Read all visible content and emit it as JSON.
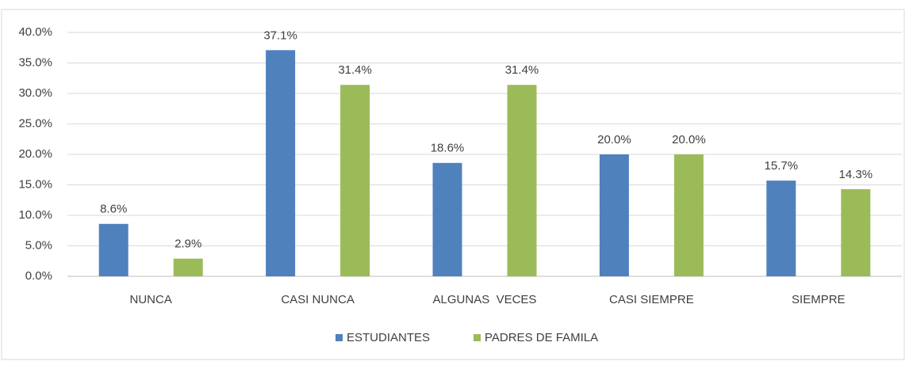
{
  "chart_data": {
    "type": "bar",
    "categories": [
      "NUNCA",
      "CASI NUNCA",
      "ALGUNAS  VECES",
      "CASI SIEMPRE",
      "SIEMPRE"
    ],
    "series": [
      {
        "name": "ESTUDIANTES",
        "color": "#4f81bd",
        "values": [
          8.6,
          37.1,
          18.6,
          20.0,
          15.7
        ],
        "value_labels": [
          "8.6%",
          "37.1%",
          "18.6%",
          "20.0%",
          "15.7%"
        ]
      },
      {
        "name": "PADRES DE FAMILA",
        "color": "#9bbb59",
        "values": [
          2.9,
          31.4,
          31.4,
          20.0,
          14.3
        ],
        "value_labels": [
          "2.9%",
          "31.4%",
          "31.4%",
          "20.0%",
          "14.3%"
        ]
      }
    ],
    "ylim": [
      0,
      40
    ],
    "yticks": [
      {
        "value": 0,
        "label": "0.0%"
      },
      {
        "value": 5,
        "label": "5.0%"
      },
      {
        "value": 10,
        "label": "10.0%"
      },
      {
        "value": 15,
        "label": "15.0%"
      },
      {
        "value": 20,
        "label": "20.0%"
      },
      {
        "value": 25,
        "label": "25.0%"
      },
      {
        "value": 30,
        "label": "30.0%"
      },
      {
        "value": 35,
        "label": "35.0%"
      },
      {
        "value": 40,
        "label": "40.0%"
      }
    ],
    "grid": true,
    "legend": "bottom"
  }
}
